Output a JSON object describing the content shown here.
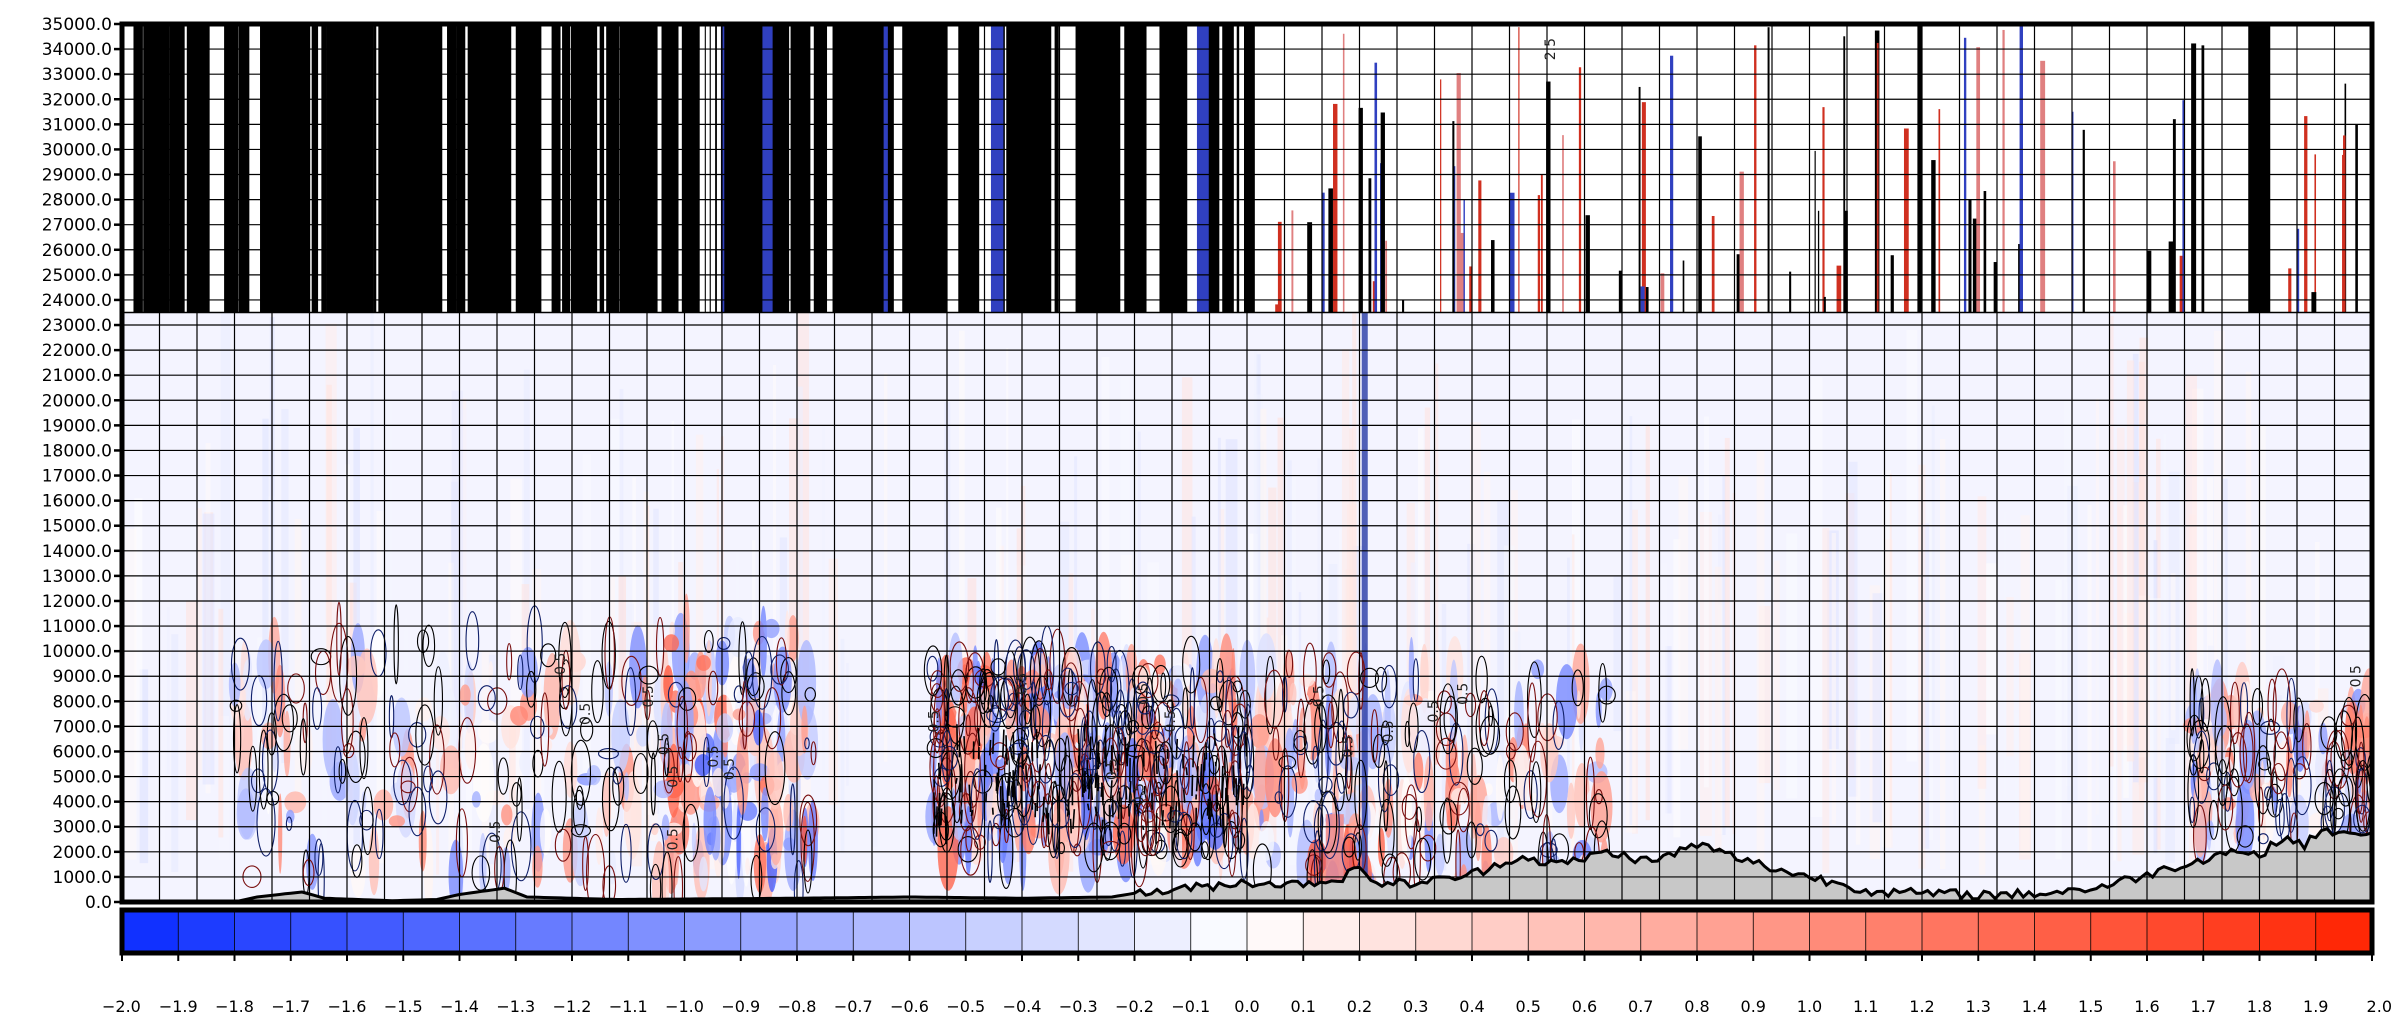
{
  "chart_data": {
    "type": "heatmap",
    "title": "",
    "xlabel": "",
    "ylabel": "",
    "ylim": [
      0,
      35000
    ],
    "y_ticks": [
      "0.0",
      "1000.0",
      "2000.0",
      "3000.0",
      "4000.0",
      "5000.0",
      "6000.0",
      "7000.0",
      "8000.0",
      "9000.0",
      "10000.0",
      "11000.0",
      "12000.0",
      "13000.0",
      "14000.0",
      "15000.0",
      "16000.0",
      "17000.0",
      "18000.0",
      "19000.0",
      "20000.0",
      "21000.0",
      "22000.0",
      "23000.0",
      "24000.0",
      "25000.0",
      "26000.0",
      "27000.0",
      "28000.0",
      "29000.0",
      "30000.0",
      "31000.0",
      "32000.0",
      "33000.0",
      "34000.0",
      "35000.0"
    ],
    "vertical_grid_count": 60,
    "field_top": 23500,
    "grid": true,
    "colorbar": {
      "min": -2.0,
      "max": 2.0,
      "step": 0.1,
      "low_color": "#0b2cff",
      "mid_color": "#ffffff",
      "high_color": "#ff2200",
      "labels": [
        "−2.0",
        "−1.9",
        "−1.8",
        "−1.7",
        "−1.6",
        "−1.5",
        "−1.4",
        "−1.3",
        "−1.2",
        "−1.1",
        "−1.0",
        "−0.9",
        "−0.8",
        "−0.7",
        "−0.6",
        "−0.5",
        "−0.4",
        "−0.3",
        "−0.2",
        "−0.1",
        "0.0",
        "0.1",
        "0.2",
        "0.3",
        "0.4",
        "0.5",
        "0.6",
        "0.7",
        "0.8",
        "0.9",
        "1.0",
        "1.1",
        "1.2",
        "1.3",
        "1.4",
        "1.5",
        "1.6",
        "1.7",
        "1.8",
        "1.9",
        "2.0"
      ]
    },
    "terrain": {
      "fill_color": "#c8c8c8",
      "profile": [
        [
          0.0,
          0
        ],
        [
          0.05,
          0
        ],
        [
          0.06,
          200
        ],
        [
          0.07,
          300
        ],
        [
          0.08,
          400
        ],
        [
          0.09,
          150
        ],
        [
          0.12,
          50
        ],
        [
          0.14,
          100
        ],
        [
          0.15,
          300
        ],
        [
          0.17,
          550
        ],
        [
          0.18,
          200
        ],
        [
          0.22,
          100
        ],
        [
          0.3,
          150
        ],
        [
          0.35,
          200
        ],
        [
          0.4,
          150
        ],
        [
          0.44,
          200
        ],
        [
          0.45,
          350
        ],
        [
          0.47,
          500
        ],
        [
          0.48,
          600
        ],
        [
          0.5,
          800
        ],
        [
          0.52,
          700
        ],
        [
          0.54,
          900
        ],
        [
          0.55,
          1300
        ],
        [
          0.56,
          700
        ],
        [
          0.58,
          800
        ],
        [
          0.6,
          1100
        ],
        [
          0.62,
          1800
        ],
        [
          0.64,
          1500
        ],
        [
          0.66,
          2000
        ],
        [
          0.68,
          1600
        ],
        [
          0.7,
          2300
        ],
        [
          0.72,
          1700
        ],
        [
          0.74,
          1200
        ],
        [
          0.76,
          800
        ],
        [
          0.78,
          400
        ],
        [
          0.8,
          350
        ],
        [
          0.82,
          300
        ],
        [
          0.84,
          300
        ],
        [
          0.86,
          400
        ],
        [
          0.88,
          600
        ],
        [
          0.9,
          1100
        ],
        [
          0.92,
          1600
        ],
        [
          0.94,
          2100
        ],
        [
          0.95,
          1800
        ],
        [
          0.96,
          2600
        ],
        [
          0.97,
          2300
        ],
        [
          0.98,
          2900
        ],
        [
          0.99,
          2600
        ],
        [
          1.0,
          2900
        ]
      ]
    },
    "contour_labels": [
      {
        "text": "0.5",
        "x": 0.197,
        "y": 9500
      },
      {
        "text": "0.5",
        "x": 0.208,
        "y": 7500
      },
      {
        "text": "0.5",
        "x": 0.236,
        "y": 8200
      },
      {
        "text": "0.5",
        "x": 0.243,
        "y": 6300
      },
      {
        "text": "0.5",
        "x": 0.247,
        "y": 5000
      },
      {
        "text": "0.5",
        "x": 0.265,
        "y": 5800
      },
      {
        "text": "0.5",
        "x": 0.272,
        "y": 5300
      },
      {
        "text": "0.5",
        "x": 0.247,
        "y": 2500
      },
      {
        "text": "0.5",
        "x": 0.168,
        "y": 2800
      },
      {
        "text": "0.5",
        "x": 0.363,
        "y": 7200
      },
      {
        "text": "0.5",
        "x": 0.402,
        "y": 8700
      },
      {
        "text": "0.5",
        "x": 0.456,
        "y": 8300
      },
      {
        "text": "0.5",
        "x": 0.468,
        "y": 7200
      },
      {
        "text": "0.5",
        "x": 0.442,
        "y": 5300
      },
      {
        "text": "0.5",
        "x": 0.454,
        "y": 4300
      },
      {
        "text": "0.5",
        "x": 0.534,
        "y": 8200
      },
      {
        "text": "0.5",
        "x": 0.547,
        "y": 6200
      },
      {
        "text": "0.5",
        "x": 0.565,
        "y": 6800
      },
      {
        "text": "0.5",
        "x": 0.585,
        "y": 7600
      },
      {
        "text": "0.5",
        "x": 0.598,
        "y": 8300
      },
      {
        "text": "0.5",
        "x": 0.995,
        "y": 9000
      },
      {
        "text": "2.5",
        "x": 0.637,
        "y": 34000
      }
    ]
  }
}
